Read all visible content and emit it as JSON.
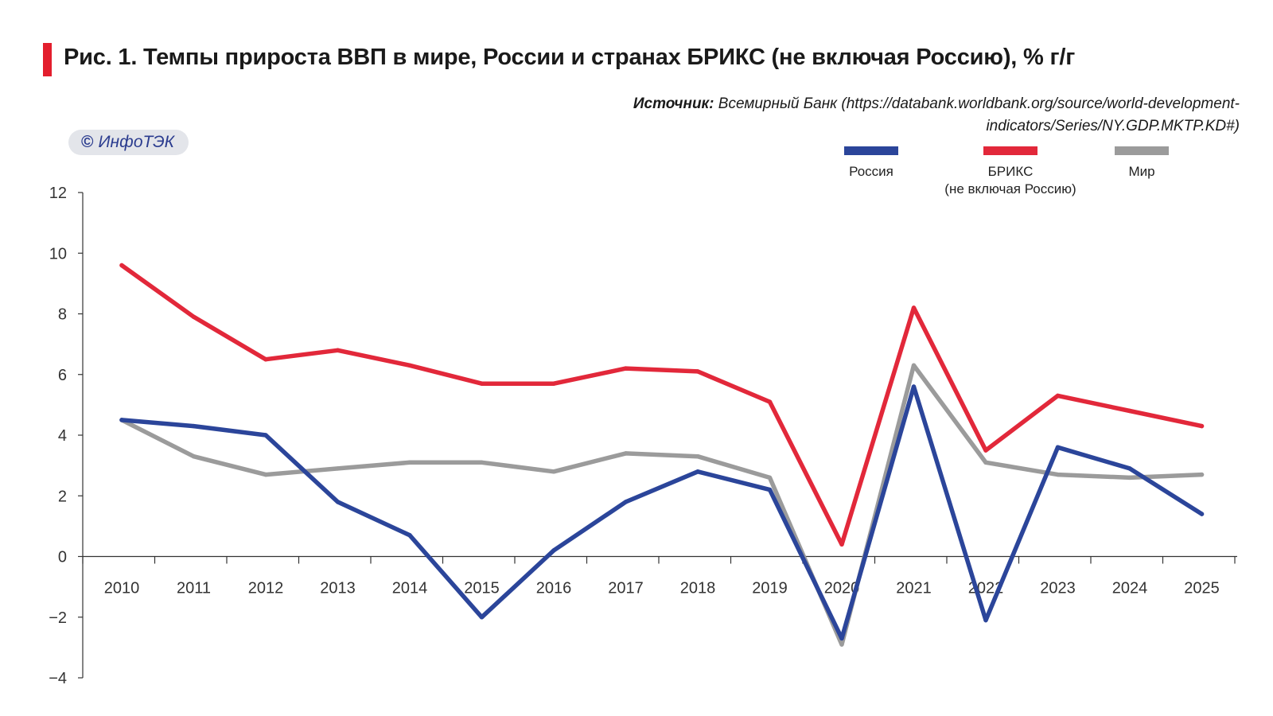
{
  "title": "Рис. 1. Темпы прироста ВВП в мире, России и странах БРИКС (не включая Россию), % г/г",
  "source": {
    "label": "Источник:",
    "text": "Всемирный Банк (https://databank.worldbank.org/source/world-development-indicators/Series/NY.GDP.MKTP.KD#)"
  },
  "badge": {
    "symbol": "©",
    "text": "ИнфоТЭК"
  },
  "chart_data": {
    "type": "line",
    "x": [
      2010,
      2011,
      2012,
      2013,
      2014,
      2015,
      2016,
      2017,
      2018,
      2019,
      2020,
      2021,
      2022,
      2023,
      2024,
      2025
    ],
    "ylim": [
      -4,
      12
    ],
    "yticks": [
      -4,
      -2,
      0,
      2,
      4,
      6,
      8,
      10,
      12
    ],
    "ytick_labels": [
      "−4",
      "−2",
      "0",
      "2",
      "4",
      "6",
      "8",
      "10",
      "12"
    ],
    "grid": false,
    "legend_position": "top-right",
    "series": [
      {
        "name": "Россия",
        "color": "#2b459a",
        "values": [
          4.5,
          4.3,
          4.0,
          1.8,
          0.7,
          -2.0,
          0.2,
          1.8,
          2.8,
          2.2,
          -2.7,
          5.6,
          -2.1,
          3.6,
          2.9,
          1.4
        ]
      },
      {
        "name": "БРИКС",
        "name_line2": "(не включая Россию)",
        "color": "#e2283a",
        "values": [
          9.6,
          7.9,
          6.5,
          6.8,
          6.3,
          5.7,
          5.7,
          6.2,
          6.1,
          5.1,
          0.4,
          8.2,
          3.5,
          5.3,
          4.8,
          4.3
        ]
      },
      {
        "name": "Мир",
        "color": "#9b9b9b",
        "values": [
          4.5,
          3.3,
          2.7,
          2.9,
          3.1,
          3.1,
          2.8,
          3.4,
          3.3,
          2.6,
          -2.9,
          6.3,
          3.1,
          2.7,
          2.6,
          2.7
        ]
      }
    ]
  }
}
